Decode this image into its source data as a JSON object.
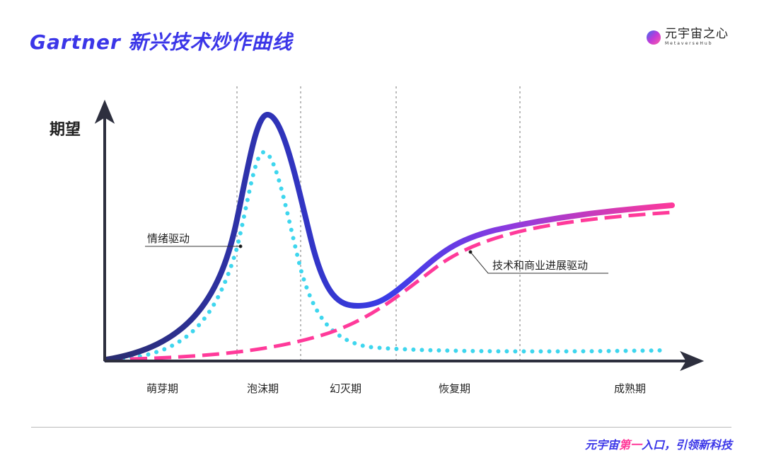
{
  "header": {
    "title": "Gartner 新兴技术炒作曲线"
  },
  "logo": {
    "name_cn": "元宇宙之心",
    "name_en": "MetaverseHub"
  },
  "axis": {
    "y_label": "期望"
  },
  "annotations": {
    "emotion": "情绪驱动",
    "progress": "技术和商业进展驱动"
  },
  "phases": [
    "萌芽期",
    "泡沫期",
    "幻灭期",
    "恢复期",
    "成熟期"
  ],
  "footer": {
    "slogan_a": "元宇宙",
    "slogan_highlight": "第一",
    "slogan_b": "入口，引领新科技"
  },
  "colors": {
    "accent": "#3b36e8",
    "pink": "#ff3a9a",
    "cyan": "#3ed6ee",
    "navy": "#2a2d6e"
  }
}
